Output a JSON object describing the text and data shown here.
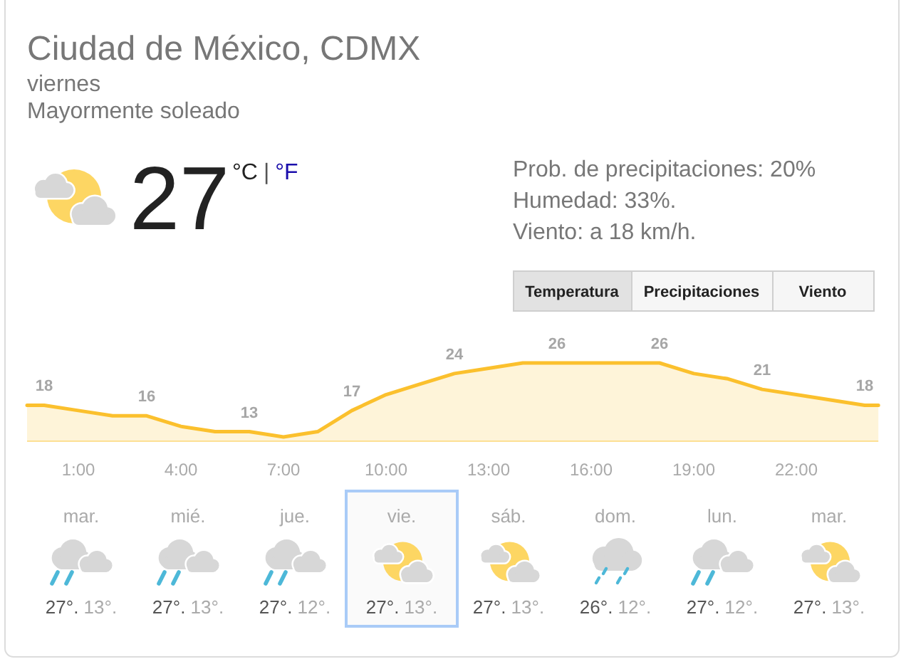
{
  "chart_data": [
    {
      "type": "other",
      "title": "Ciudad de México, CDMX",
      "subtitle": "viernes",
      "annotations": [
        "Mayormente soleado",
        "27",
        "°C",
        "|",
        "°F",
        "Prob. de precipitaciones: 20%",
        "Humedad: 33%.",
        "Viento: a 18 km/h.",
        "Temperatura",
        "Precipitaciones",
        "Viento"
      ]
    },
    {
      "type": "area",
      "x": [
        -0.5,
        0,
        1,
        2,
        3,
        4,
        5,
        6,
        7,
        8,
        9,
        10,
        11,
        12,
        13,
        14,
        15,
        16,
        17,
        18,
        19,
        20,
        21,
        22,
        23,
        24,
        24.4
      ],
      "values": [
        18,
        18,
        17,
        16,
        16,
        14,
        13,
        13,
        12,
        13,
        17,
        20,
        22,
        24,
        25,
        26,
        26,
        26,
        26,
        26,
        24,
        23,
        21,
        20,
        19,
        18,
        18
      ],
      "value_labels": [
        null,
        "18",
        null,
        null,
        "16",
        null,
        null,
        "13",
        null,
        null,
        "17",
        null,
        null,
        "24",
        null,
        null,
        "26",
        null,
        null,
        "26",
        null,
        null,
        "21",
        null,
        null,
        "18",
        null
      ],
      "color": "#fbc02d",
      "xlim": [
        -0.5,
        24.4
      ],
      "xticks": [
        {
          "value": 1,
          "label": "1:00"
        },
        {
          "value": 4,
          "label": "4:00"
        },
        {
          "value": 7,
          "label": "7:00"
        },
        {
          "value": 10,
          "label": "10:00"
        },
        {
          "value": 13,
          "label": "13:00"
        },
        {
          "value": 16,
          "label": "16:00"
        },
        {
          "value": 19,
          "label": "19:00"
        },
        {
          "value": 22,
          "label": "22:00"
        }
      ],
      "tick_labels": "x"
    },
    {
      "type": "other",
      "annotations": [
        "mar.",
        "27°.",
        "13°.",
        "mié.",
        "27°.",
        "13°.",
        "jue.",
        "27°.",
        "12°.",
        "vie.",
        "27°.",
        "13°.",
        "sáb.",
        "27°.",
        "13°.",
        "dom.",
        "26°.",
        "12°.",
        "lun.",
        "27°.",
        "12°.",
        "mar.",
        "27°.",
        "13°."
      ]
    }
  ]
}
